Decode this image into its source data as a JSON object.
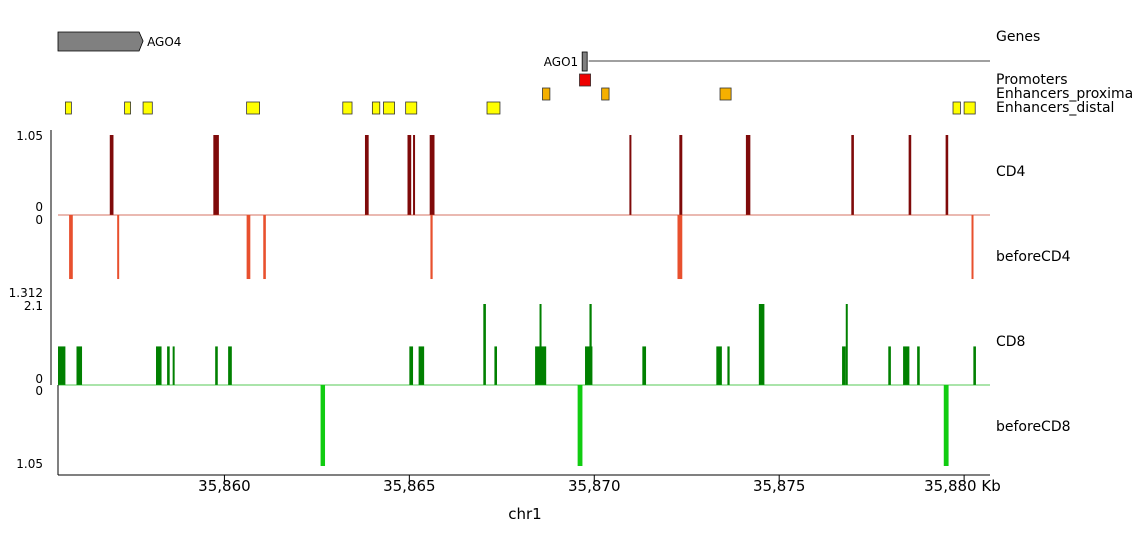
{
  "chart_data": {
    "type": "genome-browser",
    "xaxis": {
      "label": "chr1",
      "range": [
        35855.5,
        35880.7
      ],
      "ticks": [
        35860,
        35865,
        35870,
        35875,
        35880
      ],
      "tick_labels": [
        "35,860",
        "35,865",
        "35,870",
        "35,875",
        "35,880 Kb"
      ]
    },
    "genes": {
      "label": "Genes",
      "items": [
        {
          "name": "AGO4",
          "start": 35855.5,
          "end": 35857.8,
          "strand": "+",
          "fill": "#808080"
        },
        {
          "name": "AGO1",
          "start": 35869.7,
          "end": 35880.7,
          "exon_start": 35869.7,
          "exon_end": 35869.85,
          "fill": "#808080"
        }
      ]
    },
    "regions": [
      {
        "label": "Promoters",
        "color": "#ee0000",
        "intervals": [
          [
            35869.6,
            35869.9
          ]
        ]
      },
      {
        "label": "Enhancers_proximal",
        "color": "#f5b000",
        "intervals": [
          [
            35868.6,
            35868.8
          ],
          [
            35870.2,
            35870.4
          ],
          [
            35873.4,
            35873.7
          ]
        ]
      },
      {
        "label": "Enhancers_distal",
        "color": "#ffff00",
        "intervals": [
          [
            35855.7,
            35855.85
          ],
          [
            35857.3,
            35857.45
          ],
          [
            35857.8,
            35858.05
          ],
          [
            35860.6,
            35860.95
          ],
          [
            35863.2,
            35863.45
          ],
          [
            35864,
            35864.2
          ],
          [
            35864.3,
            35864.6
          ],
          [
            35864.9,
            35865.2
          ],
          [
            35867.1,
            35867.45
          ],
          [
            35879.7,
            35879.9
          ],
          [
            35880,
            35880.3
          ]
        ]
      }
    ],
    "tracks": [
      {
        "label": "CD4",
        "color": "#7f0a0a",
        "direction": "up",
        "ymax": 1.05,
        "top_label": "1.05",
        "bottom_label": "0",
        "bars": [
          [
            35856.9,
            35857.0,
            1.05
          ],
          [
            35859.7,
            35859.85,
            1.05
          ],
          [
            35863.8,
            35863.9,
            1.05
          ],
          [
            35864.95,
            35865.05,
            1.05
          ],
          [
            35865.1,
            35865.15,
            1.05
          ],
          [
            35865.55,
            35865.68,
            1.05
          ],
          [
            35870.95,
            35871.0,
            1.05
          ],
          [
            35872.3,
            35872.38,
            1.05
          ],
          [
            35874.1,
            35874.22,
            1.05
          ],
          [
            35876.95,
            35877.02,
            1.05
          ],
          [
            35878.5,
            35878.57,
            1.05
          ],
          [
            35879.5,
            35879.57,
            1.05
          ]
        ]
      },
      {
        "label": "beforeCD4",
        "color": "#e8502e",
        "direction": "down",
        "ymax": 1.312,
        "top_label": "0",
        "bottom_label": "1.312",
        "bars": [
          [
            35855.8,
            35855.9,
            1.05
          ],
          [
            35857.1,
            35857.15,
            1.05
          ],
          [
            35860.6,
            35860.7,
            1.05
          ],
          [
            35861.05,
            35861.12,
            1.05
          ],
          [
            35865.57,
            35865.63,
            1.05
          ],
          [
            35872.25,
            35872.38,
            1.05
          ],
          [
            35880.2,
            35880.25,
            1.05
          ]
        ]
      },
      {
        "label": "CD8",
        "color": "#008000",
        "direction": "up",
        "ymax": 2.1,
        "top_label": "2.1",
        "bottom_label": "0",
        "bars": [
          [
            35855.5,
            35855.7,
            1.0
          ],
          [
            35856.0,
            35856.15,
            1.0
          ],
          [
            35858.15,
            35858.3,
            1.0
          ],
          [
            35858.45,
            35858.52,
            1.0
          ],
          [
            35858.6,
            35858.65,
            1.0
          ],
          [
            35859.75,
            35859.82,
            1.0
          ],
          [
            35860.1,
            35860.2,
            1.0
          ],
          [
            35865.0,
            35865.1,
            1.0
          ],
          [
            35865.25,
            35865.4,
            1.0
          ],
          [
            35867.0,
            35867.07,
            2.1
          ],
          [
            35867.3,
            35867.37,
            1.0
          ],
          [
            35868.4,
            35868.7,
            1.0
          ],
          [
            35868.52,
            35868.55,
            2.1
          ],
          [
            35869.75,
            35869.95,
            1.0
          ],
          [
            35869.87,
            35869.93,
            2.1
          ],
          [
            35871.3,
            35871.4,
            1.0
          ],
          [
            35873.3,
            35873.45,
            1.0
          ],
          [
            35873.6,
            35873.66,
            1.0
          ],
          [
            35874.45,
            35874.6,
            2.1
          ],
          [
            35876.7,
            35876.8,
            1.0
          ],
          [
            35876.8,
            35876.84,
            2.1
          ],
          [
            35877.95,
            35878.02,
            1.0
          ],
          [
            35878.35,
            35878.52,
            1.0
          ],
          [
            35878.73,
            35878.8,
            1.0
          ],
          [
            35880.25,
            35880.32,
            1.0
          ]
        ]
      },
      {
        "label": "beforeCD8",
        "color": "#11cc11",
        "direction": "down",
        "ymax": 1.05,
        "top_label": "0",
        "bottom_label": "1.05",
        "bars": [
          [
            35862.6,
            35862.72,
            1.05
          ],
          [
            35869.55,
            35869.68,
            1.05
          ],
          [
            35879.45,
            35879.58,
            1.05
          ]
        ]
      }
    ]
  }
}
